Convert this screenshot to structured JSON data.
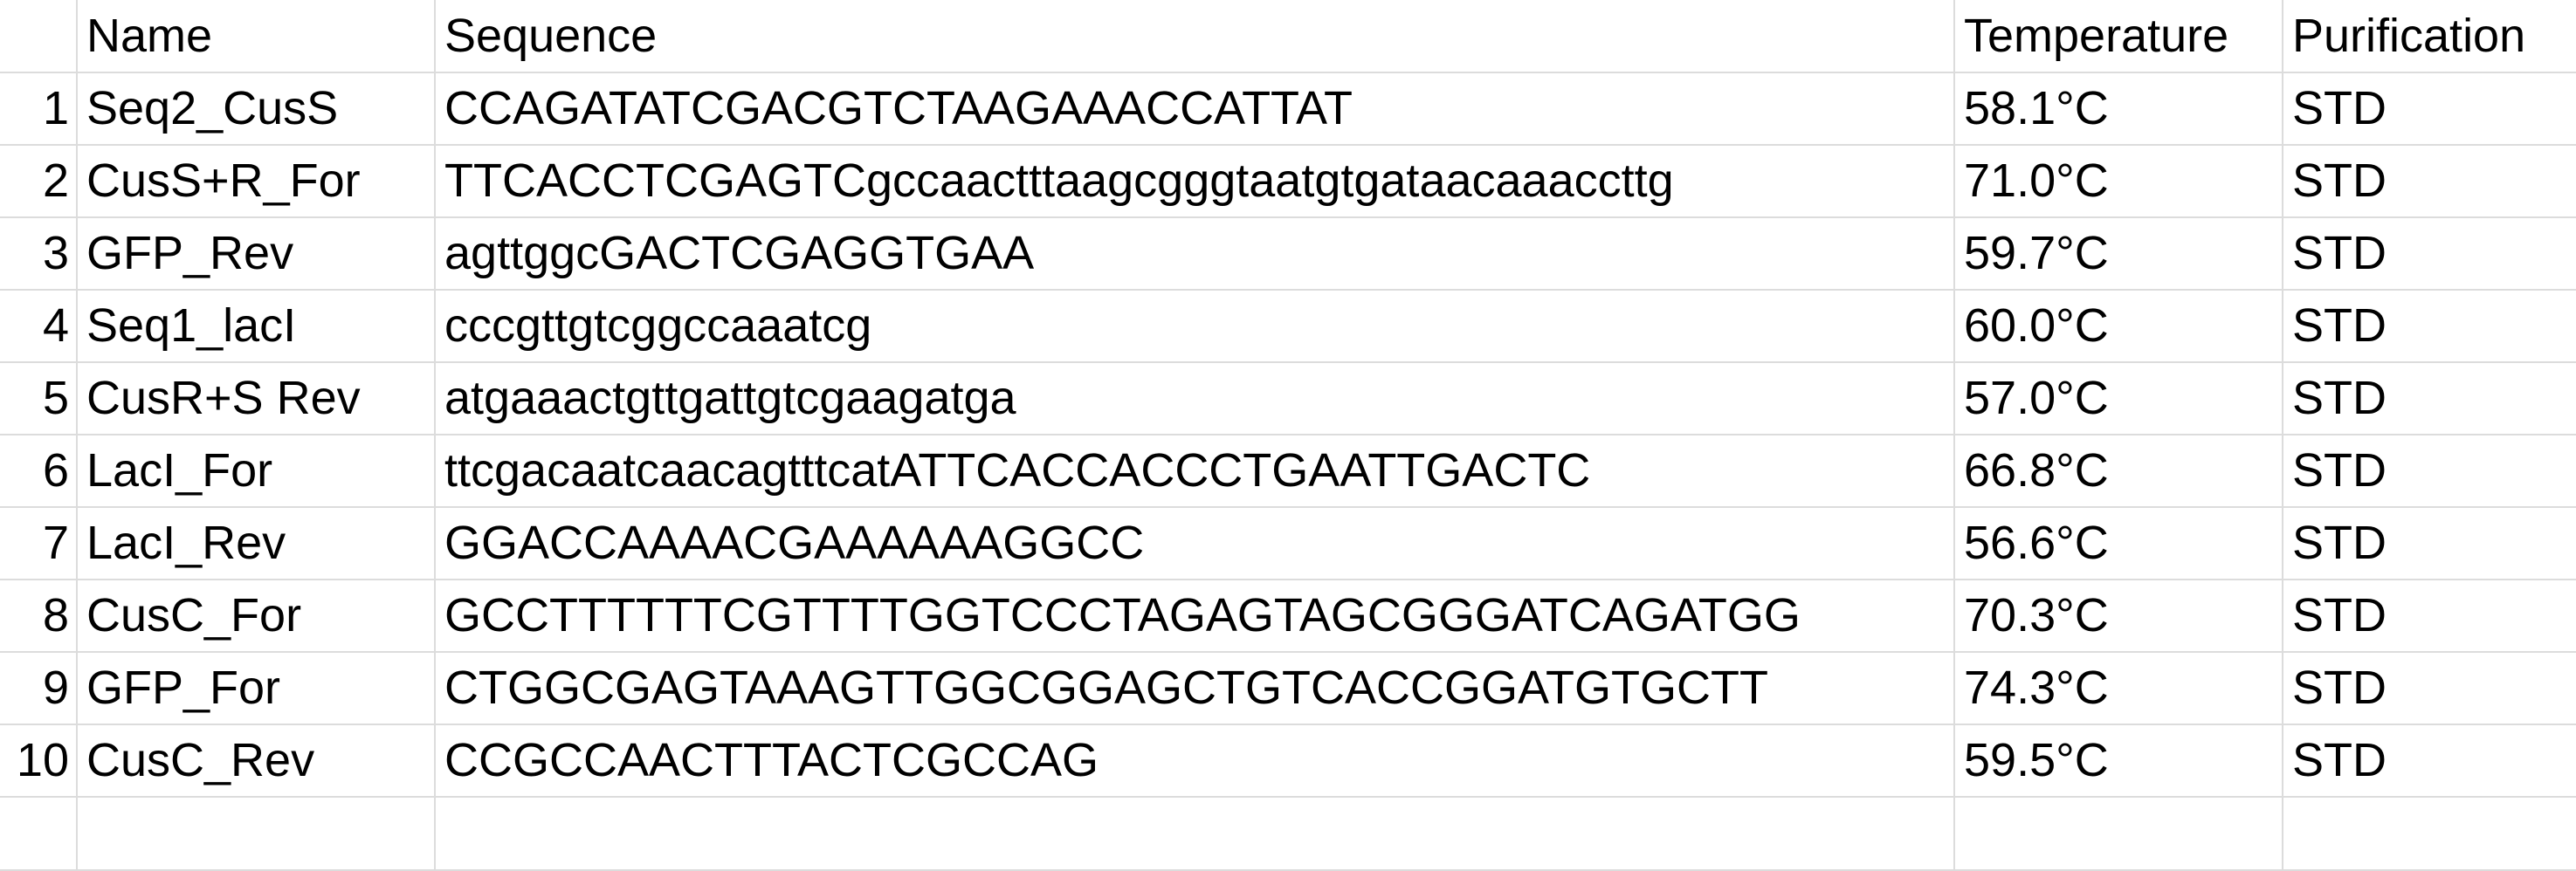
{
  "columns": {
    "name": "Name",
    "sequence": "Sequence",
    "temperature": "Temperature",
    "purification": "Purification"
  },
  "rows": [
    {
      "num": "1",
      "name": "Seq2_CusS",
      "sequence": "CCAGATATCGACGTCTAAGAAACCATTAT",
      "temperature": "58.1°C",
      "purification": "STD"
    },
    {
      "num": "2",
      "name": "CusS+R_For",
      "sequence": "TTCACCTCGAGTCgccaactttaagcgggtaatgtgataacaaaccttg",
      "temperature": "71.0°C",
      "purification": "STD"
    },
    {
      "num": "3",
      "name": "GFP_Rev",
      "sequence": "agttggcGACTCGAGGTGAA",
      "temperature": "59.7°C",
      "purification": "STD"
    },
    {
      "num": "4",
      "name": "Seq1_lacI",
      "sequence": "cccgttgtcggccaaatcg",
      "temperature": "60.0°C",
      "purification": "STD"
    },
    {
      "num": "5",
      "name": "CusR+S Rev",
      "sequence": "atgaaactgttgattgtcgaagatga",
      "temperature": "57.0°C",
      "purification": "STD"
    },
    {
      "num": "6",
      "name": "LacI_For",
      "sequence": "ttcgacaatcaacagtttcatATTCACCACCCTGAATTGACTC",
      "temperature": "66.8°C",
      "purification": "STD"
    },
    {
      "num": "7",
      "name": "LacI_Rev",
      "sequence": "GGACCAAAACGAAAAAAGGCC",
      "temperature": "56.6°C",
      "purification": "STD"
    },
    {
      "num": "8",
      "name": "CusC_For",
      "sequence": "GCCTTTTTTCGTTTTGGTCCCTAGAGTAGCGGGATCAGATGG",
      "temperature": "70.3°C",
      "purification": "STD"
    },
    {
      "num": "9",
      "name": "GFP_For",
      "sequence": "CTGGCGAGTAAAGTTGGCGGAGCTGTCACCGGATGTGCTT",
      "temperature": "74.3°C",
      "purification": "STD"
    },
    {
      "num": "10",
      "name": "CusC_Rev",
      "sequence": "CCGCCAACTTTACTCGCCAG",
      "temperature": "59.5°C",
      "purification": "STD"
    }
  ]
}
